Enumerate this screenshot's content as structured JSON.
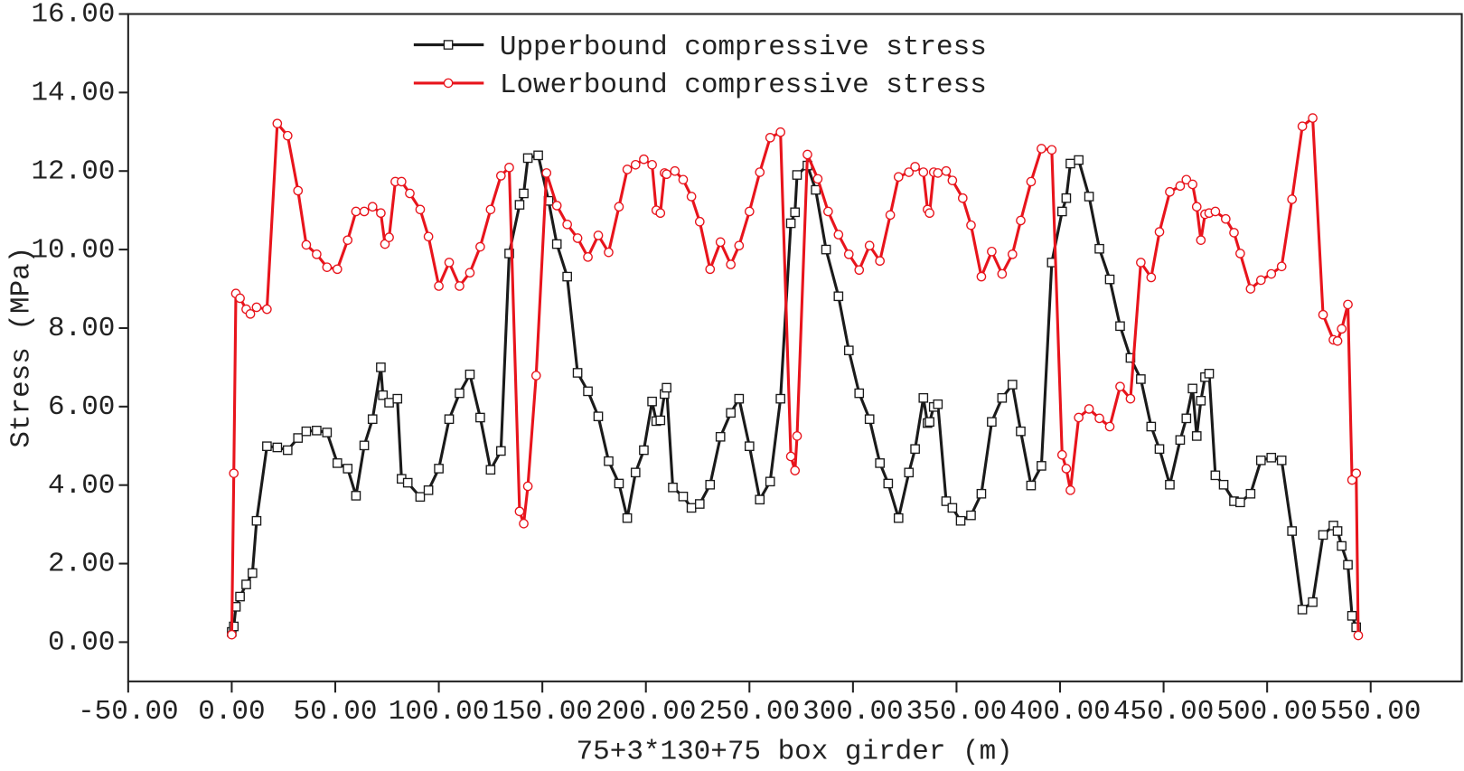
{
  "chart_data": {
    "type": "line",
    "xlabel": "75+3*130+75 box girder (m)",
    "ylabel": "Stress (MPa)",
    "legend": "upper center",
    "xlim": [
      -50,
      594
    ],
    "ylim": [
      -1,
      16
    ],
    "xticks": [
      {
        "value": -50,
        "label": "-50.00"
      },
      {
        "value": 0,
        "label": "0.00"
      },
      {
        "value": 50,
        "label": "50.00"
      },
      {
        "value": 100,
        "label": "100.00"
      },
      {
        "value": 150,
        "label": "150.00"
      },
      {
        "value": 200,
        "label": "200.00"
      },
      {
        "value": 250,
        "label": "250.00"
      },
      {
        "value": 300,
        "label": "300.00"
      },
      {
        "value": 350,
        "label": "350.00"
      },
      {
        "value": 400,
        "label": "400.00"
      },
      {
        "value": 450,
        "label": "450.00"
      },
      {
        "value": 500,
        "label": "500.00"
      },
      {
        "value": 550,
        "label": "550.00"
      }
    ],
    "yticks": [
      {
        "value": 0,
        "label": "0.00"
      },
      {
        "value": 2,
        "label": "2.00"
      },
      {
        "value": 4,
        "label": "4.00"
      },
      {
        "value": 6,
        "label": "6.00"
      },
      {
        "value": 8,
        "label": "8.00"
      },
      {
        "value": 10,
        "label": "10.00"
      },
      {
        "value": 12,
        "label": "12.00"
      },
      {
        "value": 14,
        "label": "14.00"
      },
      {
        "value": 16,
        "label": "16.00"
      }
    ],
    "series": [
      {
        "name": "Upperbound compressive stress",
        "color": "#1a1a1a",
        "marker": "square",
        "x": [
          0,
          1,
          2,
          4,
          7,
          10,
          12,
          17,
          22,
          27,
          32,
          36,
          41,
          46,
          51,
          56,
          60,
          64,
          68,
          72,
          73,
          76,
          80,
          82,
          85,
          91,
          95,
          100,
          105,
          110,
          115,
          120,
          125,
          130,
          134,
          139,
          141,
          143,
          148,
          153,
          157,
          162,
          167,
          172,
          177,
          182,
          187,
          191,
          195,
          199,
          203,
          205,
          207,
          209,
          210,
          213,
          218,
          222,
          226,
          231,
          236,
          241,
          245,
          250,
          255,
          260,
          265,
          270,
          272,
          273,
          278,
          282,
          287,
          293,
          298,
          303,
          308,
          313,
          317,
          322,
          327,
          330,
          334,
          336,
          337,
          339,
          341,
          345,
          348,
          352,
          357,
          362,
          367,
          372,
          377,
          381,
          386,
          391,
          396,
          401,
          403,
          405,
          409,
          414,
          419,
          424,
          429,
          434,
          439,
          444,
          448,
          453,
          458,
          461,
          464,
          466,
          468,
          470,
          472,
          475,
          479,
          484,
          487,
          492,
          497,
          502,
          507,
          512,
          517,
          522,
          527,
          532,
          534,
          536,
          539,
          541,
          543
        ],
        "values": [
          0.26,
          0.4,
          0.9,
          1.16,
          1.47,
          1.76,
          3.09,
          4.99,
          4.96,
          4.89,
          5.2,
          5.37,
          5.39,
          5.34,
          4.56,
          4.42,
          3.73,
          5.01,
          5.68,
          7.0,
          6.29,
          6.1,
          6.2,
          4.16,
          4.06,
          3.7,
          3.87,
          4.42,
          5.68,
          6.34,
          6.82,
          5.72,
          4.39,
          4.87,
          9.9,
          11.14,
          11.43,
          12.33,
          12.4,
          11.24,
          10.14,
          9.31,
          6.86,
          6.39,
          5.75,
          4.61,
          4.04,
          3.16,
          4.32,
          4.89,
          6.13,
          5.63,
          5.65,
          6.32,
          6.48,
          3.94,
          3.71,
          3.42,
          3.52,
          4.01,
          5.23,
          5.84,
          6.2,
          4.99,
          3.63,
          4.09,
          6.2,
          10.67,
          10.95,
          11.9,
          12.14,
          11.52,
          10.0,
          8.81,
          7.43,
          6.34,
          5.68,
          4.56,
          4.04,
          3.16,
          4.32,
          4.92,
          6.22,
          5.58,
          5.61,
          5.99,
          6.06,
          3.59,
          3.42,
          3.09,
          3.23,
          3.78,
          5.61,
          6.22,
          6.56,
          5.37,
          3.99,
          4.49,
          9.67,
          10.97,
          11.31,
          12.19,
          12.28,
          11.35,
          10.02,
          9.24,
          8.05,
          7.24,
          6.7,
          5.49,
          4.92,
          4.01,
          5.15,
          5.7,
          6.46,
          5.25,
          6.15,
          6.75,
          6.84,
          4.25,
          4.01,
          3.59,
          3.56,
          3.78,
          4.63,
          4.7,
          4.63,
          2.83,
          0.83,
          1.02,
          2.73,
          2.97,
          2.83,
          2.45,
          1.97,
          0.67,
          0.38
        ]
      },
      {
        "name": "Lowerbound compressive stress",
        "color": "#e8141c",
        "marker": "circle",
        "x": [
          0,
          1,
          2,
          4,
          7,
          9,
          12,
          17,
          22,
          27,
          32,
          36,
          41,
          46,
          51,
          56,
          60,
          64,
          68,
          72,
          74,
          76,
          79,
          82,
          86,
          91,
          95,
          100,
          105,
          110,
          115,
          120,
          125,
          130,
          134,
          139,
          141,
          143,
          147,
          152,
          157,
          162,
          167,
          172,
          177,
          182,
          187,
          191,
          195,
          199,
          203,
          205,
          207,
          209,
          210,
          214,
          218,
          222,
          226,
          231,
          236,
          241,
          245,
          250,
          255,
          260,
          265,
          270,
          272,
          273,
          278,
          283,
          288,
          293,
          298,
          303,
          308,
          313,
          318,
          322,
          327,
          330,
          334,
          336,
          337,
          339,
          341,
          345,
          348,
          353,
          357,
          362,
          367,
          372,
          377,
          381,
          386,
          391,
          396,
          401,
          403,
          405,
          409,
          414,
          419,
          424,
          429,
          434,
          439,
          444,
          448,
          453,
          458,
          461,
          464,
          466,
          468,
          470,
          472,
          475,
          480,
          484,
          487,
          492,
          497,
          502,
          507,
          512,
          517,
          522,
          527,
          532,
          534,
          536,
          539,
          541,
          543,
          544
        ],
        "values": [
          0.19,
          4.3,
          8.88,
          8.76,
          8.48,
          8.36,
          8.53,
          8.48,
          13.21,
          12.9,
          11.5,
          10.12,
          9.88,
          9.55,
          9.5,
          10.24,
          10.97,
          10.97,
          11.09,
          10.93,
          10.14,
          10.31,
          11.73,
          11.73,
          11.43,
          11.02,
          10.33,
          9.07,
          9.67,
          9.07,
          9.41,
          10.07,
          11.02,
          11.88,
          12.09,
          3.33,
          3.02,
          3.97,
          6.79,
          11.95,
          11.12,
          10.64,
          10.29,
          9.81,
          10.36,
          9.93,
          11.09,
          12.04,
          12.16,
          12.3,
          12.16,
          11.0,
          10.93,
          11.95,
          11.92,
          12.0,
          11.78,
          11.35,
          10.71,
          9.5,
          10.19,
          9.62,
          10.1,
          10.97,
          11.97,
          12.85,
          12.99,
          4.73,
          4.37,
          5.25,
          12.42,
          11.8,
          10.97,
          10.38,
          9.88,
          9.48,
          10.1,
          9.71,
          10.88,
          11.85,
          11.97,
          12.11,
          11.97,
          11.02,
          10.93,
          11.97,
          11.95,
          12.0,
          11.76,
          11.31,
          10.62,
          9.31,
          9.95,
          9.38,
          9.88,
          10.74,
          11.73,
          12.57,
          12.54,
          4.77,
          4.42,
          3.87,
          5.72,
          5.94,
          5.7,
          5.49,
          6.51,
          6.2,
          9.67,
          9.29,
          10.45,
          11.47,
          11.62,
          11.78,
          11.66,
          11.09,
          10.24,
          10.9,
          10.93,
          10.97,
          10.78,
          10.43,
          9.9,
          9.0,
          9.22,
          9.38,
          9.57,
          11.28,
          13.14,
          13.35,
          8.34,
          7.7,
          7.67,
          7.98,
          8.6,
          4.13,
          4.3,
          0.17
        ]
      }
    ]
  }
}
